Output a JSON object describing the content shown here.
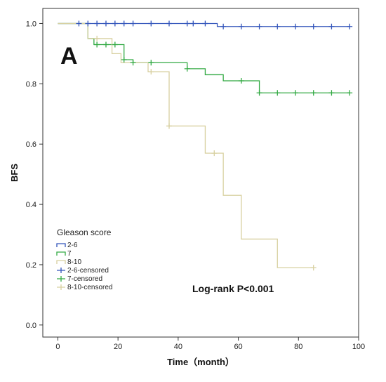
{
  "chart_data": {
    "type": "line",
    "panel_label": "A",
    "xlabel": "Time（month）",
    "ylabel": "BFS",
    "xlim": [
      -5,
      100
    ],
    "ylim": [
      -0.04,
      1.05
    ],
    "x_ticks": [
      0,
      20,
      40,
      60,
      80,
      100
    ],
    "y_ticks": [
      0.0,
      0.2,
      0.4,
      0.6,
      0.8,
      1.0
    ],
    "x_tick_labels": [
      "0",
      "20",
      "40",
      "60",
      "80",
      "100"
    ],
    "y_tick_labels": [
      "0.0",
      "0.2",
      "0.4",
      "0.6",
      "0.8",
      "1.0"
    ],
    "grid": false,
    "legend_title": "Gleason score",
    "legend_position": "lower-left",
    "annotation": "Log-rank P<0.001",
    "series": [
      {
        "name": "2-6",
        "color": "#3355bb",
        "steps": [
          [
            0,
            1.0
          ],
          [
            53,
            0.99
          ],
          [
            97,
            0.99
          ]
        ],
        "censored": [
          [
            7,
            1.0
          ],
          [
            10,
            1.0
          ],
          [
            13,
            1.0
          ],
          [
            16,
            1.0
          ],
          [
            19,
            1.0
          ],
          [
            22,
            1.0
          ],
          [
            25,
            1.0
          ],
          [
            31,
            1.0
          ],
          [
            37,
            1.0
          ],
          [
            43,
            1.0
          ],
          [
            45,
            1.0
          ],
          [
            49,
            1.0
          ],
          [
            55,
            0.99
          ],
          [
            61,
            0.99
          ],
          [
            67,
            0.99
          ],
          [
            73,
            0.99
          ],
          [
            79,
            0.99
          ],
          [
            85,
            0.99
          ],
          [
            91,
            0.99
          ],
          [
            97,
            0.99
          ]
        ]
      },
      {
        "name": "7",
        "color": "#33aa44",
        "steps": [
          [
            0,
            1.0
          ],
          [
            10,
            0.95
          ],
          [
            12,
            0.93
          ],
          [
            22,
            0.88
          ],
          [
            25,
            0.87
          ],
          [
            43,
            0.85
          ],
          [
            49,
            0.83
          ],
          [
            55,
            0.81
          ],
          [
            67,
            0.77
          ],
          [
            97,
            0.77
          ]
        ],
        "censored": [
          [
            13,
            0.93
          ],
          [
            16,
            0.93
          ],
          [
            19,
            0.93
          ],
          [
            22,
            0.88
          ],
          [
            25,
            0.87
          ],
          [
            31,
            0.87
          ],
          [
            43,
            0.85
          ],
          [
            61,
            0.81
          ],
          [
            67,
            0.77
          ],
          [
            73,
            0.77
          ],
          [
            79,
            0.77
          ],
          [
            85,
            0.77
          ],
          [
            91,
            0.77
          ],
          [
            97,
            0.77
          ]
        ]
      },
      {
        "name": "8-10",
        "color": "#d8d0a0",
        "steps": [
          [
            0,
            1.0
          ],
          [
            10,
            0.95
          ],
          [
            18,
            0.9
          ],
          [
            21,
            0.87
          ],
          [
            30,
            0.84
          ],
          [
            37,
            0.66
          ],
          [
            49,
            0.57
          ],
          [
            55,
            0.43
          ],
          [
            61,
            0.285
          ],
          [
            73,
            0.19
          ],
          [
            85,
            0.19
          ]
        ],
        "censored": [
          [
            13,
            0.95
          ],
          [
            31,
            0.84
          ],
          [
            37,
            0.66
          ],
          [
            52,
            0.57
          ],
          [
            85,
            0.19
          ]
        ]
      }
    ],
    "legend_entries": [
      {
        "label": "2-6",
        "kind": "line",
        "color": "#3355bb"
      },
      {
        "label": "7",
        "kind": "line",
        "color": "#33aa44"
      },
      {
        "label": "8-10",
        "kind": "line",
        "color": "#d8d0a0"
      },
      {
        "label": "2-6-censored",
        "kind": "cross",
        "color": "#3355bb"
      },
      {
        "label": "7-censored",
        "kind": "cross",
        "color": "#33aa44"
      },
      {
        "label": "8-10-censored",
        "kind": "cross",
        "color": "#d8d0a0"
      }
    ]
  }
}
